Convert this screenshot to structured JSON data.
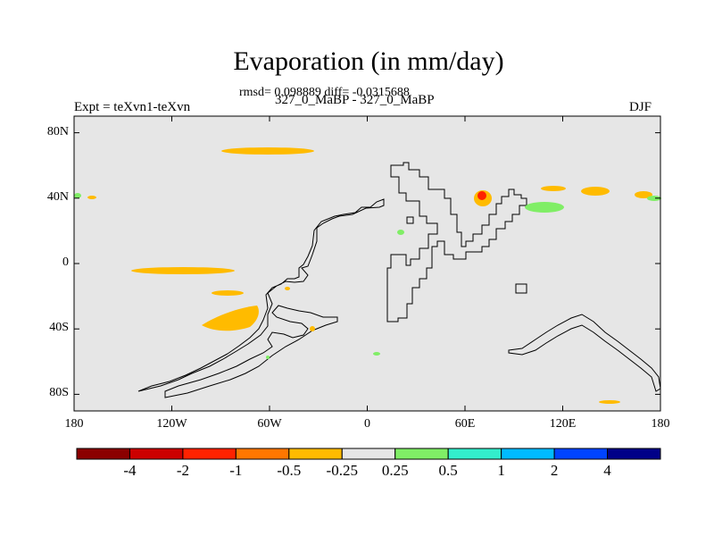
{
  "title": "Evaporation (in mm/day)",
  "stats": "rmsd= 0.098889 diff= -0.0315688",
  "expt_label": "Expt = teXvn1-teXvn",
  "case_label": "327_0_MaBP - 327_0_MaBP",
  "season": "DJF",
  "map": {
    "background": "#e6e6e6",
    "lat_ticks": [
      {
        "value": 80,
        "label": "80N"
      },
      {
        "value": 40,
        "label": "40N"
      },
      {
        "value": 0,
        "label": "0"
      },
      {
        "value": -40,
        "label": "40S"
      },
      {
        "value": -80,
        "label": "80S"
      }
    ],
    "lon_ticks": [
      {
        "value": -180,
        "label": "180"
      },
      {
        "value": -120,
        "label": "120W"
      },
      {
        "value": -60,
        "label": "60W"
      },
      {
        "value": 0,
        "label": "0"
      },
      {
        "value": 60,
        "label": "60E"
      },
      {
        "value": 120,
        "label": "120E"
      },
      {
        "value": 180,
        "label": "180"
      }
    ]
  },
  "colorbar": {
    "colors": [
      "#8b0000",
      "#cc0000",
      "#ff2200",
      "#ff7700",
      "#ffbb00",
      "#e6e6e6",
      "#80ee66",
      "#33eecc",
      "#00bbff",
      "#0044ff",
      "#000088"
    ],
    "labels": [
      "-4",
      "-2",
      "-1",
      "-0.5",
      "-0.25",
      "0.25",
      "0.5",
      "1",
      "2",
      "4"
    ]
  }
}
